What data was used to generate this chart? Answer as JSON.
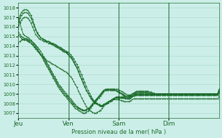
{
  "title": "",
  "xlabel": "Pression niveau de la mer( hPa )",
  "ylabel": "",
  "bg_color": "#cceee8",
  "grid_color": "#aaddcc",
  "line_color": "#1a6b2a",
  "marker_color": "#1a6b2a",
  "ylim": [
    1007,
    1018
  ],
  "yticks": [
    1007,
    1008,
    1009,
    1010,
    1011,
    1012,
    1013,
    1014,
    1015,
    1016,
    1017,
    1018
  ],
  "day_labels": [
    "Jeu",
    "Ven",
    "Sam",
    "Dim"
  ],
  "day_positions": [
    0,
    32,
    64,
    96
  ],
  "xlim": [
    0,
    128
  ],
  "series": [
    [
      1017.0,
      1016.5,
      1015.8,
      1015.3,
      1015.1,
      1015.0,
      1014.9,
      1014.8,
      1014.6,
      1014.4,
      1014.2,
      1014.0,
      1013.7,
      1013.4,
      1013.1,
      1012.8,
      1012.5,
      1012.2,
      1011.9,
      1011.6,
      1011.3,
      1011.0,
      1010.7,
      1010.4,
      1010.1,
      1009.8,
      1009.5,
      1009.3,
      1009.1,
      1008.9,
      1008.7,
      1008.5,
      1008.3,
      1008.1,
      1007.9,
      1007.7,
      1007.5,
      1007.4,
      1007.3,
      1007.2,
      1007.1,
      1007.0,
      1007.0,
      1007.1,
      1007.2,
      1007.4,
      1007.6,
      1007.8,
      1008.0,
      1008.2,
      1008.4,
      1008.6,
      1008.8,
      1009.0,
      1009.2,
      1009.4,
      1009.5,
      1009.5,
      1009.5,
      1009.5,
      1009.5,
      1009.5,
      1009.5,
      1009.5,
      1009.4,
      1009.3,
      1009.2,
      1009.1,
      1009.0,
      1008.9,
      1008.9,
      1008.9,
      1009.0,
      1009.1,
      1009.2,
      1009.3,
      1009.3,
      1009.3,
      1009.3,
      1009.3,
      1009.3,
      1009.3,
      1009.3,
      1009.2,
      1009.2,
      1009.1,
      1009.1,
      1009.0,
      1009.0,
      1009.0,
      1009.0,
      1009.0,
      1009.0,
      1009.0,
      1009.0,
      1009.0,
      1009.0,
      1009.0,
      1009.0,
      1009.0,
      1009.0,
      1009.0,
      1009.0,
      1009.0,
      1009.0,
      1009.0,
      1009.0,
      1009.0,
      1009.0,
      1009.0,
      1009.0,
      1009.0,
      1009.0,
      1009.0,
      1009.0,
      1009.0,
      1009.0,
      1009.0,
      1009.0,
      1009.0,
      1009.0,
      1009.0,
      1009.0,
      1009.0,
      1009.0,
      1009.0,
      1009.0,
      1009.5
    ],
    [
      1015.5,
      1015.2,
      1015.0,
      1014.9,
      1014.8,
      1014.8,
      1014.7,
      1014.6,
      1014.5,
      1014.4,
      1014.3,
      1014.1,
      1013.9,
      1013.7,
      1013.5,
      1013.2,
      1012.9,
      1012.6,
      1012.3,
      1012.0,
      1011.7,
      1011.4,
      1011.1,
      1010.8,
      1010.5,
      1010.2,
      1009.9,
      1009.7,
      1009.5,
      1009.3,
      1009.1,
      1008.9,
      1008.7,
      1008.5,
      1008.3,
      1008.1,
      1007.9,
      1007.7,
      1007.6,
      1007.5,
      1007.4,
      1007.3,
      1007.3,
      1007.4,
      1007.5,
      1007.6,
      1007.8,
      1008.0,
      1008.2,
      1008.4,
      1008.6,
      1008.8,
      1009.0,
      1009.2,
      1009.4,
      1009.5,
      1009.5,
      1009.5,
      1009.5,
      1009.5,
      1009.5,
      1009.5,
      1009.4,
      1009.3,
      1009.2,
      1009.1,
      1009.0,
      1008.9,
      1008.8,
      1008.8,
      1008.8,
      1008.9,
      1009.0,
      1009.1,
      1009.2,
      1009.2,
      1009.2,
      1009.2,
      1009.2,
      1009.2,
      1009.2,
      1009.2,
      1009.2,
      1009.1,
      1009.1,
      1009.0,
      1009.0,
      1009.0,
      1009.0,
      1009.0,
      1009.0,
      1009.0,
      1009.0,
      1009.0,
      1009.0,
      1009.0,
      1009.0,
      1009.0,
      1009.0,
      1009.0,
      1009.0,
      1009.0,
      1009.0,
      1009.0,
      1009.0,
      1009.0,
      1009.0,
      1009.0,
      1009.0,
      1009.0,
      1009.0,
      1009.0,
      1009.0,
      1009.0,
      1009.0,
      1009.0,
      1009.0,
      1009.0,
      1009.0,
      1009.0,
      1009.0,
      1009.0,
      1009.0,
      1009.0,
      1009.0,
      1009.0,
      1009.0,
      1009.3
    ],
    [
      1015.2,
      1015.0,
      1014.8,
      1014.7,
      1014.6,
      1014.6,
      1014.5,
      1014.4,
      1014.3,
      1014.2,
      1014.0,
      1013.8,
      1013.6,
      1013.4,
      1013.2,
      1013.0,
      1012.7,
      1012.4,
      1012.1,
      1011.8,
      1011.5,
      1011.2,
      1010.9,
      1010.6,
      1010.3,
      1010.0,
      1009.7,
      1009.5,
      1009.3,
      1009.1,
      1008.9,
      1008.7,
      1008.5,
      1008.3,
      1008.1,
      1007.9,
      1007.7,
      1007.6,
      1007.5,
      1007.4,
      1007.3,
      1007.3,
      1007.3,
      1007.3,
      1007.4,
      1007.5,
      1007.7,
      1007.9,
      1008.1,
      1008.3,
      1008.5,
      1008.7,
      1008.9,
      1009.1,
      1009.3,
      1009.4,
      1009.4,
      1009.4,
      1009.4,
      1009.4,
      1009.4,
      1009.4,
      1009.3,
      1009.2,
      1009.1,
      1009.0,
      1008.9,
      1008.8,
      1008.7,
      1008.7,
      1008.7,
      1008.8,
      1008.9,
      1009.0,
      1009.1,
      1009.1,
      1009.1,
      1009.1,
      1009.1,
      1009.1,
      1009.1,
      1009.1,
      1009.1,
      1009.0,
      1009.0,
      1009.0,
      1009.0,
      1009.0,
      1009.0,
      1009.0,
      1009.0,
      1009.0,
      1009.0,
      1009.0,
      1009.0,
      1009.0,
      1009.0,
      1009.0,
      1009.0,
      1009.0,
      1009.0,
      1009.0,
      1009.0,
      1009.0,
      1009.0,
      1009.0,
      1009.0,
      1009.0,
      1009.0,
      1009.0,
      1009.0,
      1009.0,
      1009.0,
      1009.0,
      1009.0,
      1009.0,
      1009.0,
      1009.0,
      1009.0,
      1009.0,
      1009.0,
      1009.0,
      1009.0,
      1009.0,
      1009.0,
      1009.0,
      1009.0,
      1009.1
    ],
    [
      1016.5,
      1017.2,
      1017.5,
      1017.7,
      1017.8,
      1017.8,
      1017.7,
      1017.5,
      1017.2,
      1016.8,
      1016.3,
      1015.8,
      1015.4,
      1015.1,
      1014.9,
      1014.8,
      1014.7,
      1014.6,
      1014.5,
      1014.5,
      1014.4,
      1014.3,
      1014.3,
      1014.2,
      1014.1,
      1014.0,
      1013.9,
      1013.8,
      1013.7,
      1013.6,
      1013.5,
      1013.4,
      1013.3,
      1013.1,
      1012.9,
      1012.7,
      1012.4,
      1012.1,
      1011.8,
      1011.4,
      1011.0,
      1010.6,
      1010.2,
      1009.8,
      1009.4,
      1009.1,
      1008.8,
      1008.5,
      1008.3,
      1008.1,
      1008.0,
      1007.9,
      1007.8,
      1007.8,
      1007.9,
      1008.0,
      1008.1,
      1008.2,
      1008.3,
      1008.4,
      1008.5,
      1008.6,
      1008.7,
      1008.7,
      1008.7,
      1008.7,
      1008.7,
      1008.7,
      1008.6,
      1008.6,
      1008.6,
      1008.7,
      1008.8,
      1008.9,
      1009.0,
      1009.0,
      1009.0,
      1009.0,
      1009.0,
      1009.0,
      1009.0,
      1009.0,
      1009.0,
      1009.0,
      1009.0,
      1009.0,
      1009.0,
      1009.0,
      1009.0,
      1009.0,
      1009.0,
      1009.0,
      1009.0,
      1009.0,
      1009.0,
      1009.0,
      1009.0,
      1009.0,
      1009.0,
      1009.0,
      1009.0,
      1009.0,
      1009.0,
      1009.0,
      1009.0,
      1009.0,
      1009.0,
      1009.0,
      1009.0,
      1009.0,
      1009.0,
      1009.0,
      1009.0,
      1009.0,
      1009.0,
      1009.0,
      1009.0,
      1009.0,
      1009.0,
      1009.0,
      1009.0,
      1009.0,
      1009.0,
      1009.0,
      1009.0,
      1009.0,
      1009.0,
      1009.5
    ],
    [
      1016.2,
      1016.9,
      1017.2,
      1017.4,
      1017.5,
      1017.5,
      1017.4,
      1017.2,
      1016.9,
      1016.5,
      1016.1,
      1015.7,
      1015.3,
      1015.1,
      1014.9,
      1014.8,
      1014.7,
      1014.6,
      1014.5,
      1014.5,
      1014.4,
      1014.3,
      1014.2,
      1014.1,
      1014.0,
      1013.9,
      1013.8,
      1013.7,
      1013.6,
      1013.5,
      1013.4,
      1013.3,
      1013.1,
      1012.9,
      1012.7,
      1012.4,
      1012.1,
      1011.8,
      1011.4,
      1011.0,
      1010.6,
      1010.2,
      1009.8,
      1009.4,
      1009.1,
      1008.8,
      1008.5,
      1008.3,
      1008.1,
      1008.0,
      1007.9,
      1007.8,
      1007.7,
      1007.7,
      1007.8,
      1007.9,
      1008.0,
      1008.1,
      1008.2,
      1008.3,
      1008.4,
      1008.5,
      1008.6,
      1008.6,
      1008.6,
      1008.6,
      1008.6,
      1008.6,
      1008.5,
      1008.5,
      1008.5,
      1008.6,
      1008.7,
      1008.8,
      1008.9,
      1008.9,
      1008.9,
      1008.9,
      1008.9,
      1008.9,
      1008.9,
      1008.9,
      1008.9,
      1008.9,
      1008.9,
      1008.9,
      1008.9,
      1008.9,
      1008.9,
      1008.9,
      1008.9,
      1008.9,
      1008.9,
      1008.9,
      1008.9,
      1008.9,
      1008.9,
      1008.9,
      1008.9,
      1008.9,
      1008.9,
      1008.9,
      1008.9,
      1008.9,
      1008.9,
      1008.9,
      1008.9,
      1008.9,
      1008.9,
      1008.9,
      1008.9,
      1008.9,
      1008.9,
      1008.9,
      1008.9,
      1008.9,
      1008.9,
      1008.9,
      1008.9,
      1008.9,
      1008.9,
      1008.9,
      1008.9,
      1008.9,
      1008.9,
      1008.9,
      1008.9,
      1009.3
    ],
    [
      1015.8,
      1016.4,
      1016.7,
      1016.9,
      1017.0,
      1017.0,
      1016.9,
      1016.7,
      1016.4,
      1016.0,
      1015.6,
      1015.2,
      1015.0,
      1014.8,
      1014.7,
      1014.6,
      1014.5,
      1014.5,
      1014.4,
      1014.3,
      1014.3,
      1014.2,
      1014.1,
      1014.0,
      1013.9,
      1013.8,
      1013.7,
      1013.6,
      1013.5,
      1013.4,
      1013.3,
      1013.2,
      1013.0,
      1012.8,
      1012.6,
      1012.3,
      1012.0,
      1011.7,
      1011.3,
      1010.9,
      1010.5,
      1010.1,
      1009.7,
      1009.4,
      1009.1,
      1008.8,
      1008.6,
      1008.4,
      1008.2,
      1008.1,
      1008.0,
      1007.9,
      1007.8,
      1007.8,
      1007.9,
      1008.0,
      1008.1,
      1008.2,
      1008.3,
      1008.4,
      1008.5,
      1008.6,
      1008.6,
      1008.6,
      1008.6,
      1008.6,
      1008.6,
      1008.6,
      1008.5,
      1008.5,
      1008.5,
      1008.6,
      1008.7,
      1008.8,
      1008.9,
      1008.9,
      1008.9,
      1008.9,
      1008.9,
      1008.9,
      1008.9,
      1008.9,
      1008.9,
      1008.9,
      1008.9,
      1008.9,
      1008.9,
      1008.9,
      1008.9,
      1008.9,
      1008.9,
      1008.9,
      1008.9,
      1008.9,
      1008.9,
      1008.9,
      1008.9,
      1008.9,
      1008.9,
      1008.9,
      1008.9,
      1008.9,
      1008.9,
      1008.9,
      1008.9,
      1008.9,
      1008.9,
      1008.9,
      1008.9,
      1008.9,
      1008.9,
      1008.9,
      1008.9,
      1008.9,
      1008.9,
      1008.9,
      1008.9,
      1008.9,
      1008.9,
      1008.9,
      1008.9,
      1008.9,
      1008.9,
      1008.9,
      1008.9,
      1008.9,
      1008.9,
      1009.3
    ],
    [
      1014.3,
      1014.5,
      1014.6,
      1014.7,
      1014.7,
      1014.7,
      1014.6,
      1014.5,
      1014.3,
      1014.1,
      1013.9,
      1013.7,
      1013.5,
      1013.3,
      1013.1,
      1013.0,
      1012.8,
      1012.7,
      1012.5,
      1012.4,
      1012.3,
      1012.2,
      1012.1,
      1012.0,
      1011.9,
      1011.8,
      1011.7,
      1011.6,
      1011.5,
      1011.4,
      1011.3,
      1011.2,
      1011.0,
      1010.8,
      1010.6,
      1010.3,
      1010.0,
      1009.7,
      1009.3,
      1009.0,
      1008.6,
      1008.3,
      1008.0,
      1007.7,
      1007.5,
      1007.3,
      1007.2,
      1007.1,
      1007.0,
      1007.0,
      1007.1,
      1007.2,
      1007.3,
      1007.5,
      1007.7,
      1007.9,
      1008.0,
      1008.1,
      1008.2,
      1008.3,
      1008.4,
      1008.4,
      1008.4,
      1008.4,
      1008.4,
      1008.3,
      1008.3,
      1008.2,
      1008.2,
      1008.2,
      1008.2,
      1008.3,
      1008.4,
      1008.5,
      1008.5,
      1008.5,
      1008.5,
      1008.5,
      1008.5,
      1008.5,
      1008.5,
      1008.5,
      1008.5,
      1008.5,
      1008.5,
      1008.5,
      1008.5,
      1008.5,
      1008.5,
      1008.5,
      1008.5,
      1008.5,
      1008.5,
      1008.5,
      1008.5,
      1008.5,
      1008.5,
      1008.5,
      1008.5,
      1008.5,
      1008.5,
      1008.5,
      1008.5,
      1008.5,
      1008.5,
      1008.5,
      1008.5,
      1008.5,
      1008.5,
      1008.5,
      1008.5,
      1008.5,
      1008.5,
      1008.5,
      1008.5,
      1008.5,
      1008.5,
      1008.5,
      1008.5,
      1008.5,
      1008.5,
      1008.5,
      1008.5,
      1008.5,
      1008.5,
      1008.5,
      1008.5,
      1008.7
    ]
  ],
  "n_points": 128
}
